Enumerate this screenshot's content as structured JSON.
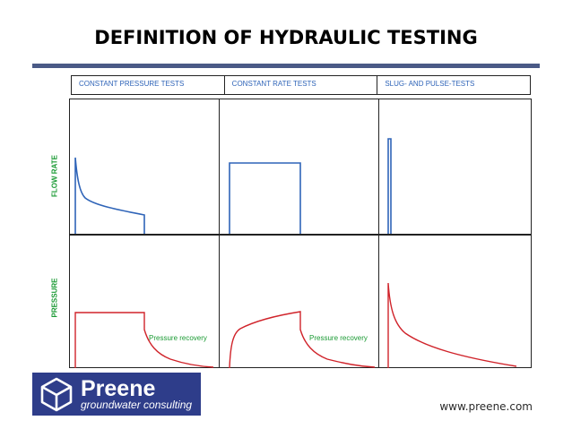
{
  "title": "DEFINITION OF HYDRAULIC TESTING",
  "columns": [
    "CONSTANT PRESSURE TESTS",
    "CONSTANT RATE TESTS",
    "SLUG- AND PULSE-TESTS"
  ],
  "rows": [
    "FLOW RATE",
    "PRESSURE"
  ],
  "annotations": {
    "recovery": "Pressure recovery"
  },
  "colors": {
    "flow_line": "#2f64b8",
    "pressure_line": "#d0232a",
    "axis_label": "#1a9a33",
    "brand": "#2e3d8a"
  },
  "logo": {
    "name": "Preene",
    "tagline": "groundwater consulting",
    "icon": "cube-icon"
  },
  "website": "www.preene.com"
}
